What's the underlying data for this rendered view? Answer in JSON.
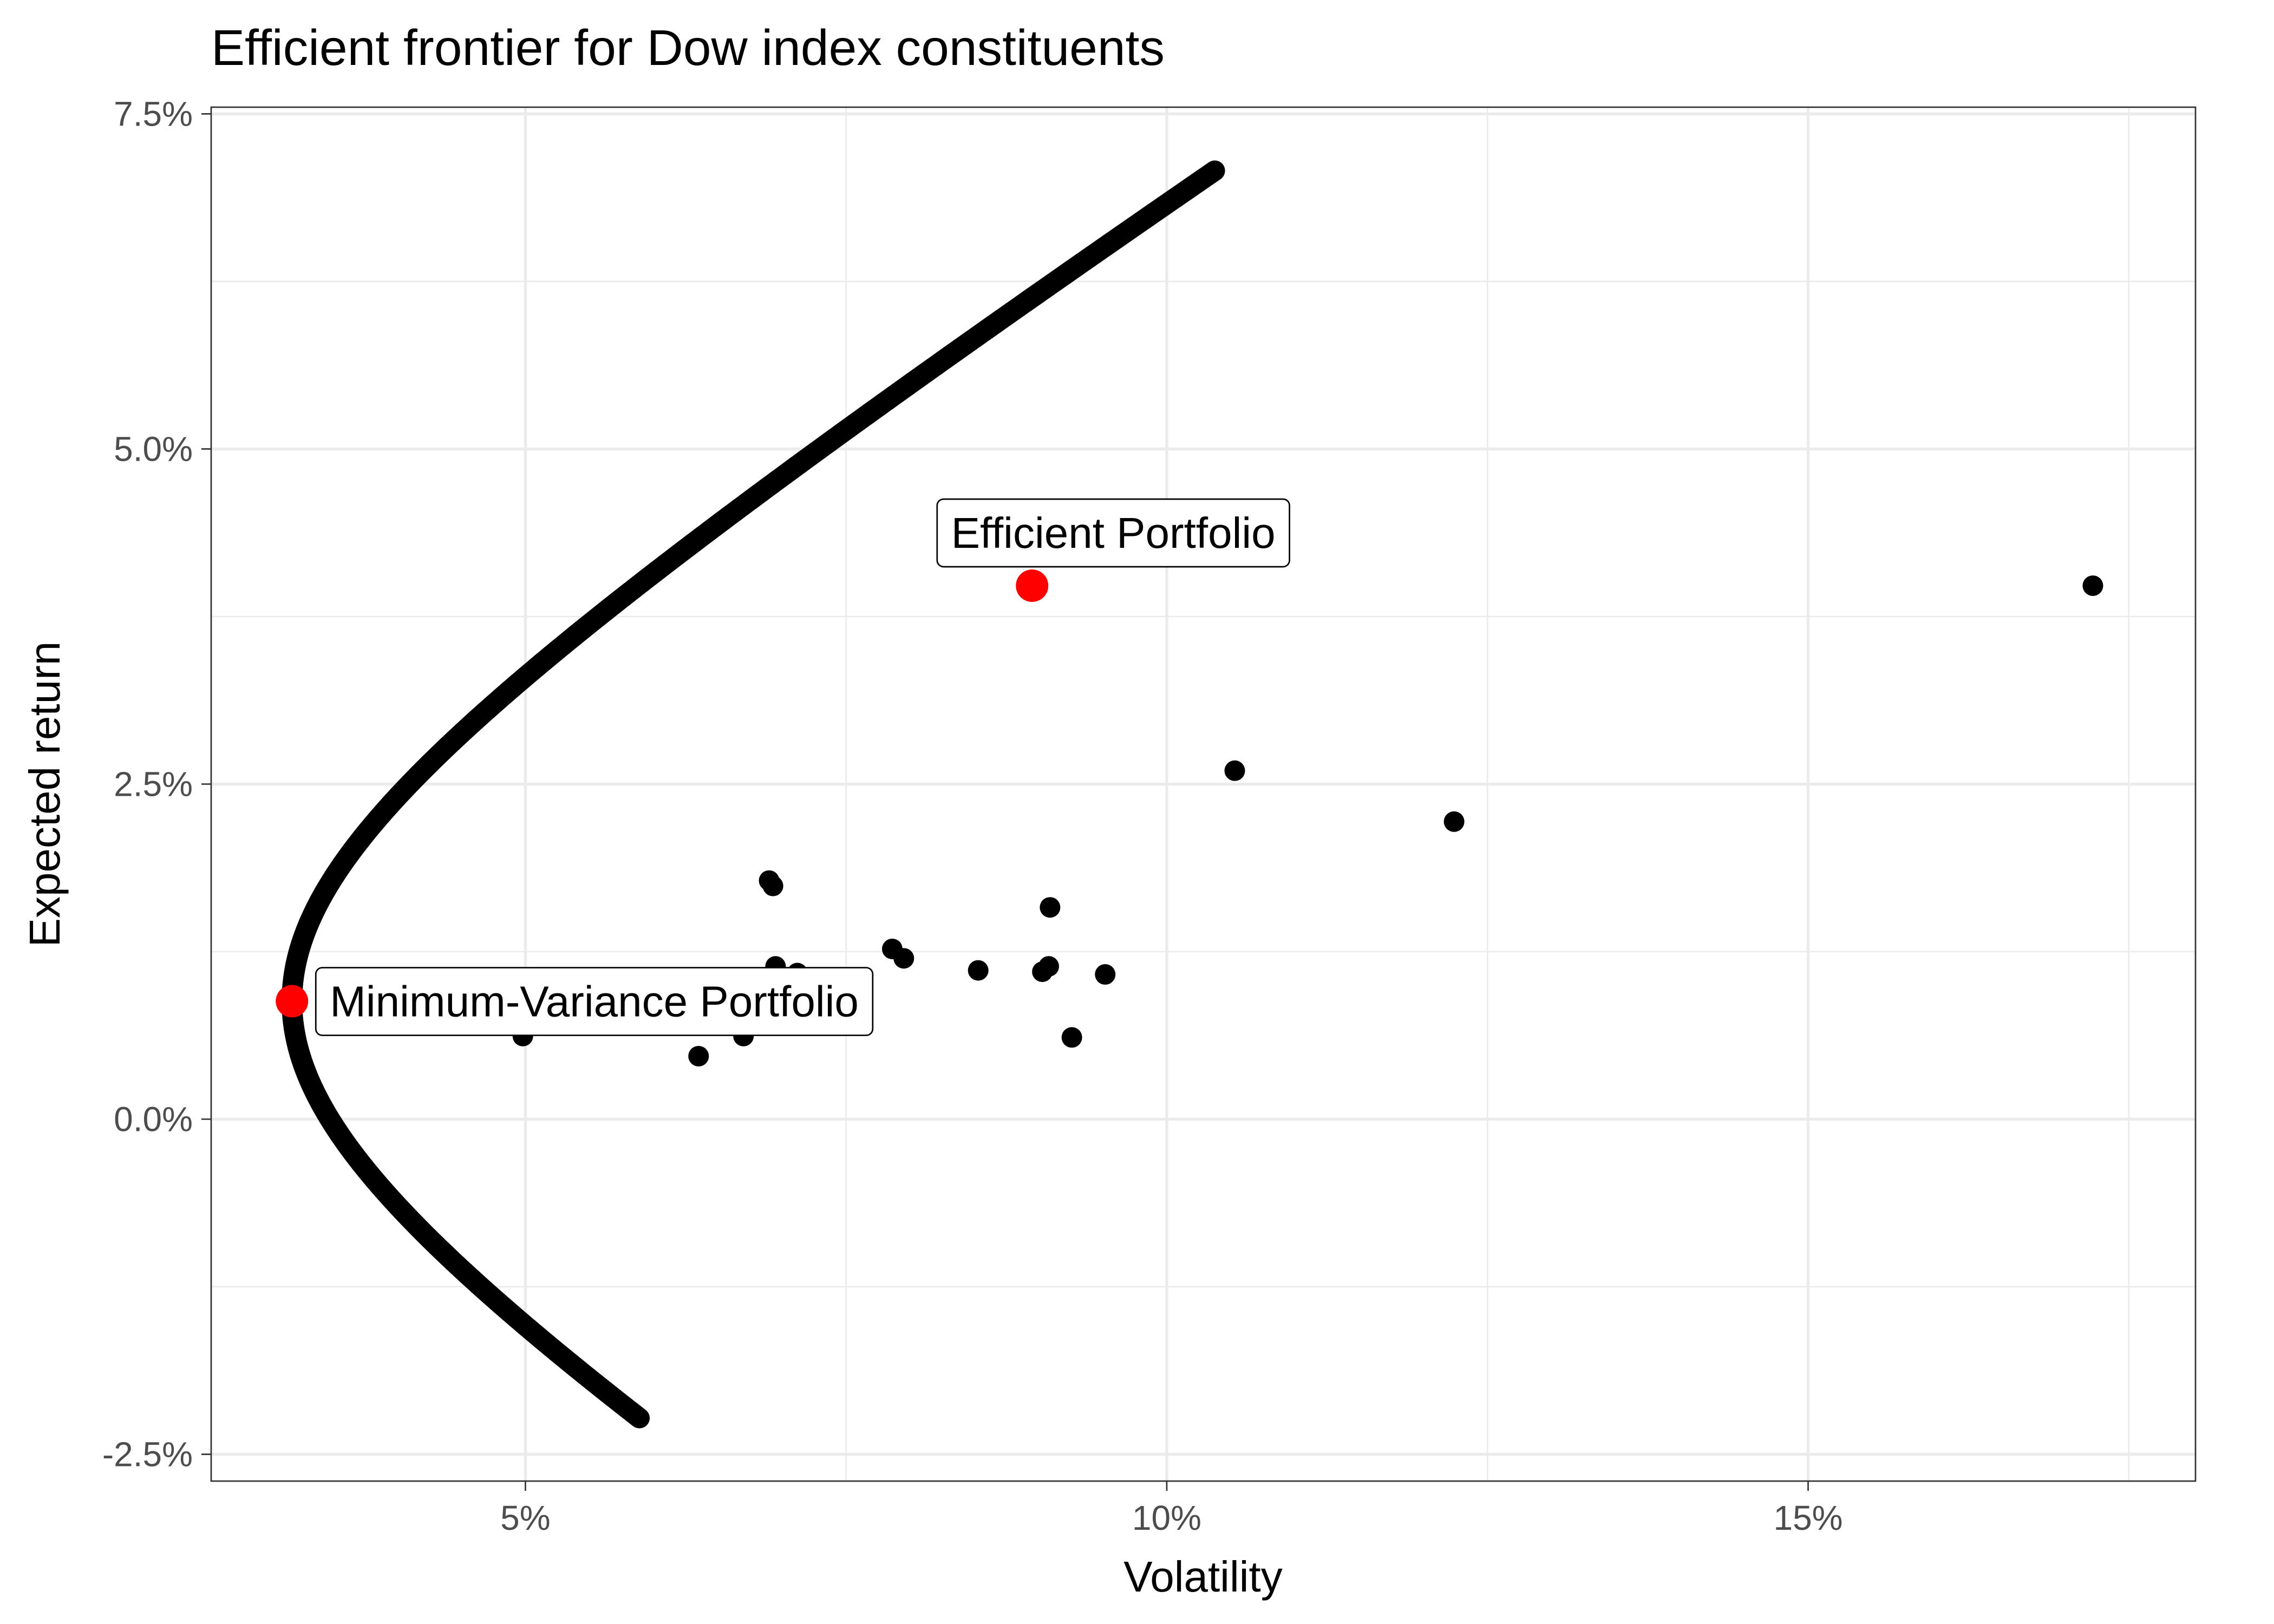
{
  "chart_data": {
    "type": "scatter",
    "title": "Efficient frontier for Dow index constituents",
    "xlabel": "Volatility",
    "ylabel": "Expected return",
    "xlim": [
      0.0255,
      0.1802
    ],
    "ylim": [
      -0.027,
      0.0755
    ],
    "x_ticks": [
      {
        "value": 0.05,
        "label": "5%"
      },
      {
        "value": 0.1,
        "label": "10%"
      },
      {
        "value": 0.15,
        "label": "15%"
      }
    ],
    "y_ticks": [
      {
        "value": -0.025,
        "label": "-2.5%"
      },
      {
        "value": 0.0,
        "label": "0.0%"
      },
      {
        "value": 0.025,
        "label": "2.5%"
      },
      {
        "value": 0.05,
        "label": "5.0%"
      },
      {
        "value": 0.075,
        "label": "7.5%"
      }
    ],
    "grid": true,
    "frontier": {
      "min_variance_volatility": 0.0318,
      "min_variance_return": 0.0088,
      "curvature": 2.54,
      "return_range": [
        -0.0223,
        0.0708
      ]
    },
    "assets": [
      {
        "x": 0.0498,
        "y": 0.0062
      },
      {
        "x": 0.0635,
        "y": 0.0047
      },
      {
        "x": 0.067,
        "y": 0.0062
      },
      {
        "x": 0.069,
        "y": 0.0178
      },
      {
        "x": 0.0693,
        "y": 0.0174
      },
      {
        "x": 0.0695,
        "y": 0.0114
      },
      {
        "x": 0.0712,
        "y": 0.0109
      },
      {
        "x": 0.0786,
        "y": 0.0127
      },
      {
        "x": 0.0795,
        "y": 0.012
      },
      {
        "x": 0.0853,
        "y": 0.0111
      },
      {
        "x": 0.0903,
        "y": 0.011
      },
      {
        "x": 0.0908,
        "y": 0.0114
      },
      {
        "x": 0.0909,
        "y": 0.0158
      },
      {
        "x": 0.0926,
        "y": 0.0061
      },
      {
        "x": 0.0952,
        "y": 0.0108
      },
      {
        "x": 0.1053,
        "y": 0.026
      },
      {
        "x": 0.1224,
        "y": 0.0222
      },
      {
        "x": 0.1722,
        "y": 0.0398
      }
    ],
    "highlighted": [
      {
        "label": "Efficient Portfolio",
        "x": 0.0895,
        "y": 0.0398,
        "label_position": "above"
      },
      {
        "label": "Minimum-Variance Portfolio",
        "x": 0.0318,
        "y": 0.0088,
        "label_position": "right"
      }
    ],
    "colors": {
      "points": "#000000",
      "highlight": "#ff0000",
      "grid": "#ebebeb",
      "border": "#333333",
      "tick_text": "#4d4d4d"
    }
  }
}
